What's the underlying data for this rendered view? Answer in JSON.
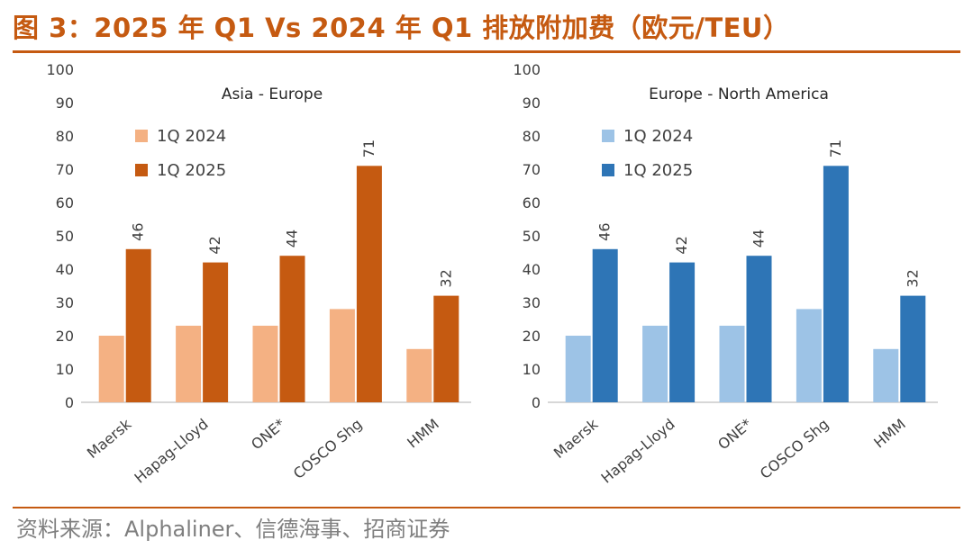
{
  "figure": {
    "title": "图 3：2025 年 Q1 Vs 2024 年 Q1 排放附加费（欧元/TEU）",
    "source": "资料来源：Alphaliner、信德海事、招商证券"
  },
  "chart_data": [
    {
      "type": "bar",
      "title": "Asia - Europe",
      "xlabel": "",
      "ylabel": "",
      "categories": [
        "Maersk",
        "Hapag-Lloyd",
        "ONE*",
        "COSCO Shg",
        "HMM"
      ],
      "series": [
        {
          "name": "1Q 2024",
          "values": [
            20,
            23,
            23,
            28,
            16
          ],
          "color": "#f4b183"
        },
        {
          "name": "1Q 2025",
          "values": [
            46,
            42,
            44,
            71,
            32
          ],
          "color": "#c55a11",
          "data_labels": true
        }
      ],
      "ylim": [
        0,
        100
      ],
      "yticks": [
        0,
        10,
        20,
        30,
        40,
        50,
        60,
        70,
        80,
        90,
        100
      ],
      "grid": false,
      "legend": "upper-left"
    },
    {
      "type": "bar",
      "title": "Europe - North America",
      "xlabel": "",
      "ylabel": "",
      "categories": [
        "Maersk",
        "Hapag-Lloyd",
        "ONE*",
        "COSCO Shg",
        "HMM"
      ],
      "series": [
        {
          "name": "1Q 2024",
          "values": [
            20,
            23,
            23,
            28,
            16
          ],
          "color": "#9dc3e6"
        },
        {
          "name": "1Q 2025",
          "values": [
            46,
            42,
            44,
            71,
            32
          ],
          "color": "#2e75b6",
          "data_labels": true
        }
      ],
      "ylim": [
        0,
        100
      ],
      "yticks": [
        0,
        10,
        20,
        30,
        40,
        50,
        60,
        70,
        80,
        90,
        100
      ],
      "grid": false,
      "legend": "upper-left"
    }
  ]
}
